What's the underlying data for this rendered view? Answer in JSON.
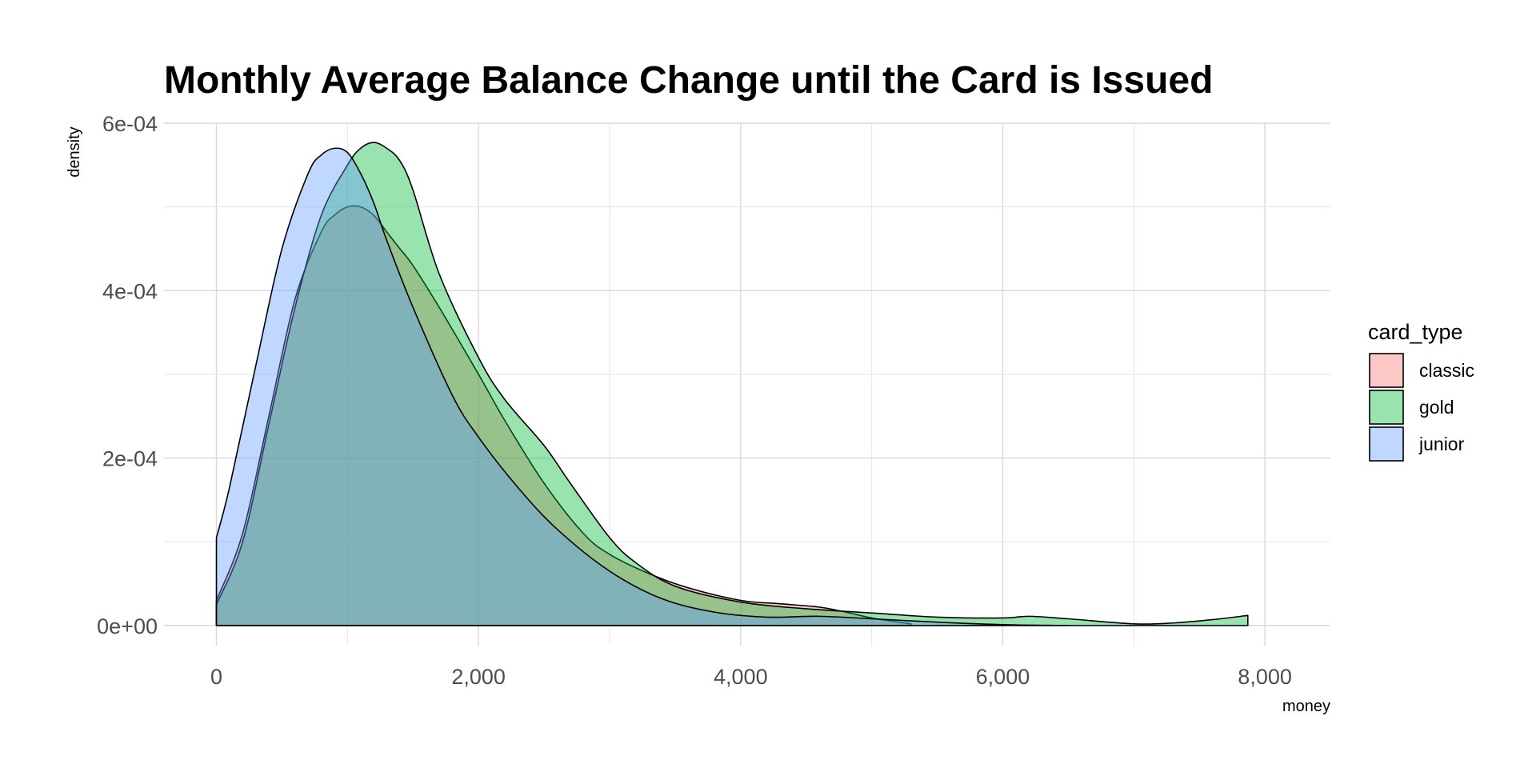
{
  "chart_data": {
    "type": "area",
    "title": "Monthly Average Balance Change until the Card is Issued",
    "xlabel": "money",
    "ylabel": "density",
    "xlim": [
      -400,
      8500
    ],
    "ylim": [
      -2.4e-05,
      0.0006
    ],
    "x_ticks": [
      0,
      2000,
      4000,
      6000,
      8000
    ],
    "x_tick_labels": [
      "0",
      "2,000",
      "4,000",
      "6,000",
      "8,000"
    ],
    "y_ticks": [
      0,
      0.0002,
      0.0004,
      0.0006
    ],
    "y_tick_labels": [
      "0e+00",
      "2e-04",
      "4e-04",
      "6e-04"
    ],
    "grid": true,
    "legend": {
      "title": "card_type",
      "position": "right"
    },
    "series": [
      {
        "name": "classic",
        "color": "#F8766D",
        "x": [
          0,
          200,
          400,
          600,
          800,
          900,
          1000,
          1100,
          1200,
          1300,
          1400,
          1500,
          1700,
          2000,
          2200,
          2500,
          2800,
          3000,
          3300,
          3600,
          4000,
          4300,
          4600,
          4800,
          5000,
          5200,
          5300
        ],
        "y": [
          3e-05,
          0.00011,
          0.00025,
          0.00039,
          0.00047,
          0.00049,
          0.0005,
          0.0005,
          0.00049,
          0.00047,
          0.00045,
          0.00043,
          0.00038,
          0.0003,
          0.000245,
          0.00017,
          0.00011,
          8.5e-05,
          6.2e-05,
          4.5e-05,
          3e-05,
          2.6e-05,
          2.2e-05,
          1.6e-05,
          9e-06,
          4e-06,
          2e-06
        ]
      },
      {
        "name": "gold",
        "color": "#00BA38",
        "x": [
          0,
          200,
          400,
          600,
          800,
          1000,
          1100,
          1200,
          1300,
          1400,
          1500,
          1700,
          2000,
          2200,
          2500,
          2700,
          3000,
          3200,
          3500,
          4000,
          4500,
          5000,
          5500,
          6000,
          6200,
          6500,
          7000,
          7300,
          7600,
          7870
        ],
        "y": [
          2.5e-05,
          0.0001,
          0.00024,
          0.00038,
          0.00049,
          0.00055,
          0.00057,
          0.000577,
          0.00057,
          0.000555,
          0.00052,
          0.00042,
          0.00032,
          0.00027,
          0.000215,
          0.00017,
          0.000105,
          7.5e-05,
          4.7e-05,
          2.8e-05,
          2e-05,
          1.5e-05,
          1e-05,
          9e-06,
          1.1e-05,
          8e-06,
          2e-06,
          3e-06,
          7e-06,
          1.2e-05
        ]
      },
      {
        "name": "junior",
        "color": "#619CFF",
        "x": [
          0,
          100,
          300,
          500,
          700,
          800,
          900,
          1000,
          1100,
          1200,
          1300,
          1500,
          1800,
          2000,
          2300,
          2600,
          3000,
          3400,
          3800,
          4200,
          4600,
          5000,
          5500,
          6000,
          6500
        ],
        "y": [
          0.000105,
          0.000165,
          0.00031,
          0.00045,
          0.00054,
          0.000562,
          0.00057,
          0.000565,
          0.00054,
          0.000505,
          0.00046,
          0.00038,
          0.000275,
          0.000225,
          0.000165,
          0.000115,
          6.5e-05,
          3.2e-05,
          1.6e-05,
          1e-05,
          1.1e-05,
          8e-06,
          4e-06,
          1e-06,
          0.0
        ]
      }
    ]
  }
}
